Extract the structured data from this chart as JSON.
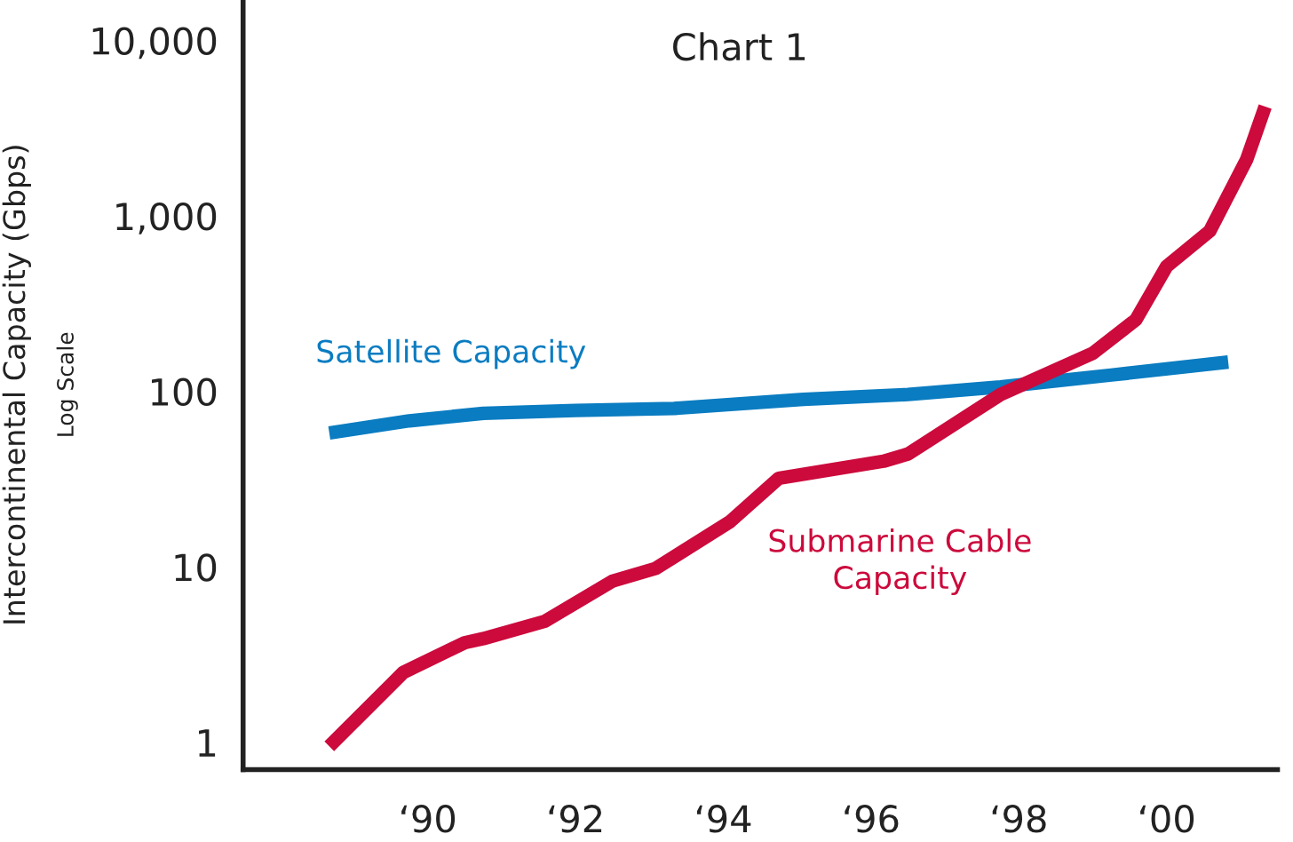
{
  "chart_data": {
    "type": "line",
    "title": "Chart 1",
    "ylabel": "Intercontinental Capacity (Gbps)",
    "annotations": [
      "Log Scale"
    ],
    "log": "y",
    "grid": false,
    "legend": false,
    "line_style": "solid",
    "marker": "none",
    "xlim": [
      "1987-07",
      "2001-07"
    ],
    "ylim": [
      0.7,
      17000
    ],
    "xticks": [
      {
        "value": "1990",
        "label": "‘90"
      },
      {
        "value": "1992",
        "label": "‘92"
      },
      {
        "value": "1994",
        "label": "‘94"
      },
      {
        "value": "1996",
        "label": "‘96"
      },
      {
        "value": "1998",
        "label": "‘98"
      },
      {
        "value": "2000",
        "label": "‘00"
      }
    ],
    "yticks": [
      1,
      10,
      100,
      {
        "value": 1000,
        "label": "1,000"
      },
      {
        "value": 10000,
        "label": "10,000"
      }
    ],
    "series": [
      {
        "name": "Satellite Capacity",
        "color": "#0a7cc1",
        "x": [
          "1988-09",
          "1989-10",
          "1990-10",
          "1992-01",
          "1993-05",
          "1995-02",
          "1996-07",
          "1997-10",
          "1999-04",
          "2000-11"
        ],
        "values": [
          58,
          68,
          75,
          78,
          80,
          90,
          96,
          106,
          124,
          147
        ]
      },
      {
        "name": "Submarine Cable\nCapacity",
        "color": "#cc0a3c",
        "x": [
          "1988-09",
          "1989-09",
          "1990-07",
          "1990-10",
          "1991-08",
          "1992-07",
          "1993-02",
          "1994-02",
          "1994-10",
          "1996-03",
          "1996-07",
          "1997-10",
          "1999-01",
          "1999-08",
          "2000-01",
          "2000-08",
          "2001-02",
          "2001-05"
        ],
        "values": [
          0.95,
          2.5,
          3.7,
          3.9,
          4.9,
          8.3,
          9.8,
          18,
          32,
          40,
          44,
          96,
          165,
          256,
          516,
          820,
          2100,
          4200
        ]
      }
    ]
  }
}
